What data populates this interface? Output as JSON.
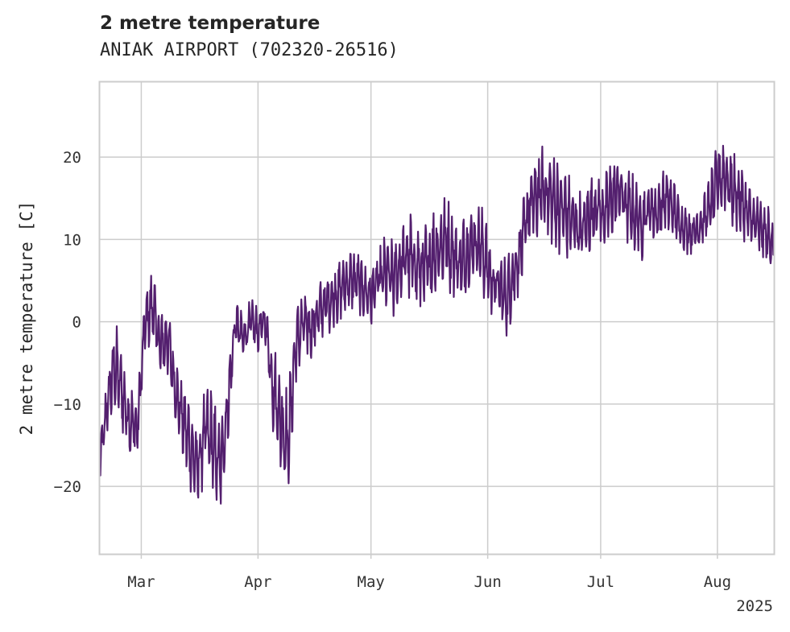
{
  "chart_data": {
    "type": "line",
    "title": "2 metre temperature",
    "subtitle": "ANIAK AIRPORT (702320-26516)",
    "ylabel": "2 metre temperature [C]",
    "xlabel": "",
    "x_start": "2025-02-18",
    "x_end": "2025-08-16",
    "ylim": [
      -28.2,
      29.1
    ],
    "yticks": [
      -20,
      -10,
      0,
      10,
      20
    ],
    "ytick_labels": [
      "−20",
      "−10",
      "0",
      "10",
      "20"
    ],
    "xticks": [
      {
        "date": "2025-03-01",
        "label": "Mar"
      },
      {
        "date": "2025-04-01",
        "label": "Apr"
      },
      {
        "date": "2025-05-01",
        "label": "May"
      },
      {
        "date": "2025-06-01",
        "label": "Jun"
      },
      {
        "date": "2025-07-01",
        "label": "Jul"
      },
      {
        "date": "2025-08-01",
        "label": "Aug"
      }
    ],
    "x_offset_label": "2025",
    "grid": true,
    "line_color": "#531f6e",
    "series": [
      {
        "dates": [
          "2025-02-18",
          "2025-02-20",
          "2025-02-22",
          "2025-02-24",
          "2025-02-26",
          "2025-02-28",
          "2025-03-02",
          "2025-03-04",
          "2025-03-06",
          "2025-03-08",
          "2025-03-10",
          "2025-03-12",
          "2025-03-14",
          "2025-03-16",
          "2025-03-18",
          "2025-03-20",
          "2025-03-22",
          "2025-03-24",
          "2025-03-26",
          "2025-03-28",
          "2025-03-30",
          "2025-04-01",
          "2025-04-03",
          "2025-04-05",
          "2025-04-07",
          "2025-04-09",
          "2025-04-11",
          "2025-04-13",
          "2025-04-15",
          "2025-04-17",
          "2025-04-19",
          "2025-04-21",
          "2025-04-23",
          "2025-04-25",
          "2025-04-27",
          "2025-04-29",
          "2025-05-01",
          "2025-05-03",
          "2025-05-05",
          "2025-05-07",
          "2025-05-09",
          "2025-05-11",
          "2025-05-13",
          "2025-05-15",
          "2025-05-17",
          "2025-05-19",
          "2025-05-21",
          "2025-05-23",
          "2025-05-25",
          "2025-05-27",
          "2025-05-29",
          "2025-05-31",
          "2025-06-02",
          "2025-06-04",
          "2025-06-06",
          "2025-06-08",
          "2025-06-10",
          "2025-06-12",
          "2025-06-14",
          "2025-06-16",
          "2025-06-18",
          "2025-06-20",
          "2025-06-22",
          "2025-06-24",
          "2025-06-26",
          "2025-06-28",
          "2025-06-30",
          "2025-07-02",
          "2025-07-04",
          "2025-07-06",
          "2025-07-08",
          "2025-07-10",
          "2025-07-12",
          "2025-07-14",
          "2025-07-16",
          "2025-07-18",
          "2025-07-20",
          "2025-07-22",
          "2025-07-24",
          "2025-07-26",
          "2025-07-28",
          "2025-07-30",
          "2025-08-01",
          "2025-08-03",
          "2025-08-05",
          "2025-08-07",
          "2025-08-09",
          "2025-08-11",
          "2025-08-13",
          "2025-08-15"
        ],
        "values": [
          -17,
          -10,
          -5,
          -9,
          -12,
          -13,
          0,
          2,
          -3,
          -2,
          -8,
          -12,
          -15,
          -18,
          -13,
          -15,
          -18,
          -10,
          0,
          -2,
          0,
          -1,
          0,
          -8,
          -12,
          -15,
          -3,
          0,
          -1,
          1,
          2,
          3,
          4,
          5,
          5,
          4,
          3,
          5,
          6,
          5,
          7,
          8,
          7,
          6,
          8,
          9,
          10,
          8,
          7,
          9,
          10,
          8,
          5,
          4,
          3,
          6,
          9,
          14,
          15,
          16,
          15,
          14,
          13,
          12,
          11,
          13,
          14,
          13,
          15,
          16,
          14,
          13,
          12,
          14,
          13,
          15,
          14,
          12,
          11,
          11,
          12,
          14,
          17,
          18,
          16,
          15,
          13,
          12,
          11,
          10
        ],
        "amplitude": [
          3,
          4,
          6,
          5,
          5,
          4,
          4,
          5,
          5,
          5,
          4,
          5,
          6,
          6,
          6,
          7,
          6,
          5,
          3,
          3,
          3,
          3,
          3,
          6,
          7,
          7,
          5,
          4,
          4,
          4,
          4,
          4,
          4,
          4,
          4,
          4,
          4,
          4,
          5,
          5,
          5,
          6,
          6,
          6,
          6,
          6,
          6,
          6,
          6,
          5,
          5,
          6,
          5,
          5,
          5,
          5,
          5,
          5,
          6,
          6,
          6,
          6,
          6,
          5,
          5,
          5,
          5,
          5,
          5,
          5,
          5,
          5,
          5,
          4,
          4,
          4,
          4,
          3,
          3,
          3,
          3,
          4,
          5,
          5,
          5,
          5,
          4,
          4,
          4,
          4
        ]
      }
    ]
  }
}
